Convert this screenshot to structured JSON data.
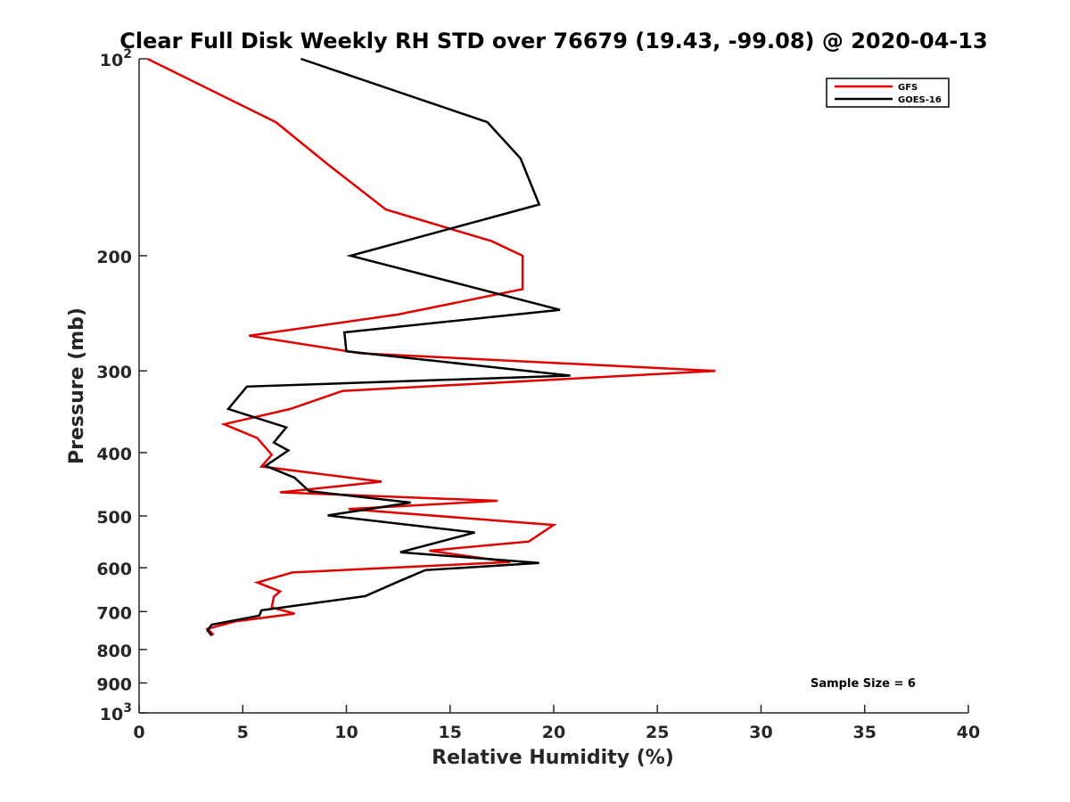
{
  "chart_data": {
    "type": "line",
    "title": "Clear Full Disk Weekly RH STD over 76679 (19.43, -99.08) @ 2020-04-13",
    "xlabel": "Relative Humidity (%)",
    "ylabel": "Pressure (mb)",
    "xlim": [
      0,
      40
    ],
    "ylim": [
      100,
      1000
    ],
    "y_scale": "log",
    "y_reversed": true,
    "grid": false,
    "x_ticks": [
      0,
      5,
      10,
      15,
      20,
      25,
      30,
      35,
      40
    ],
    "x_tick_labels": [
      "0",
      "5",
      "10",
      "15",
      "20",
      "25",
      "30",
      "35",
      "40"
    ],
    "y_ticks": [
      {
        "value": 100,
        "label": "10",
        "sup": "2"
      },
      {
        "value": 200,
        "label": "200"
      },
      {
        "value": 300,
        "label": "300"
      },
      {
        "value": 400,
        "label": "400"
      },
      {
        "value": 500,
        "label": "500"
      },
      {
        "value": 600,
        "label": "600"
      },
      {
        "value": 700,
        "label": "700"
      },
      {
        "value": 800,
        "label": "800"
      },
      {
        "value": 900,
        "label": "900"
      },
      {
        "value": 1000,
        "label": "10",
        "sup": "3"
      }
    ],
    "legend_position": "top-right",
    "annotation": "Sample Size = 6",
    "series": [
      {
        "name": "GFS",
        "color": "#e00000",
        "points": [
          [
            0.4,
            100
          ],
          [
            6.6,
            125
          ],
          [
            9.1,
            145
          ],
          [
            11.9,
            170
          ],
          [
            17.0,
            190
          ],
          [
            18.5,
            200
          ],
          [
            18.5,
            225
          ],
          [
            12.5,
            246
          ],
          [
            5.3,
            265
          ],
          [
            10.7,
            282
          ],
          [
            27.8,
            300
          ],
          [
            9.8,
            322
          ],
          [
            7.3,
            343
          ],
          [
            4.1,
            362
          ],
          [
            5.7,
            380
          ],
          [
            6.4,
            403
          ],
          [
            5.9,
            420
          ],
          [
            11.7,
            443
          ],
          [
            6.8,
            460
          ],
          [
            17.3,
            474
          ],
          [
            10.1,
            488
          ],
          [
            20.0,
            516
          ],
          [
            18.8,
            547
          ],
          [
            14.0,
            565
          ],
          [
            17.9,
            588
          ],
          [
            7.4,
            610
          ],
          [
            5.7,
            632
          ],
          [
            6.8,
            652
          ],
          [
            6.5,
            664
          ],
          [
            6.4,
            690
          ],
          [
            7.5,
            705
          ],
          [
            4.6,
            725
          ],
          [
            3.3,
            744
          ],
          [
            3.6,
            760
          ]
        ]
      },
      {
        "name": "GOES-16",
        "color": "#000000",
        "points": [
          [
            7.8,
            100
          ],
          [
            16.8,
            125
          ],
          [
            18.4,
            142
          ],
          [
            19.3,
            167
          ],
          [
            10.2,
            200
          ],
          [
            20.3,
            242
          ],
          [
            9.9,
            262
          ],
          [
            10.0,
            280
          ],
          [
            20.8,
            305
          ],
          [
            5.2,
            317
          ],
          [
            4.3,
            343
          ],
          [
            7.1,
            366
          ],
          [
            6.5,
            386
          ],
          [
            7.2,
            397
          ],
          [
            6.1,
            419
          ],
          [
            7.5,
            437
          ],
          [
            8.2,
            458
          ],
          [
            13.1,
            477
          ],
          [
            9.1,
            499
          ],
          [
            16.2,
            530
          ],
          [
            12.6,
            568
          ],
          [
            19.3,
            590
          ],
          [
            13.8,
            605
          ],
          [
            12.5,
            630
          ],
          [
            10.9,
            663
          ],
          [
            5.9,
            697
          ],
          [
            5.8,
            710
          ],
          [
            3.5,
            733
          ],
          [
            3.3,
            748
          ],
          [
            3.5,
            762
          ]
        ]
      }
    ]
  }
}
